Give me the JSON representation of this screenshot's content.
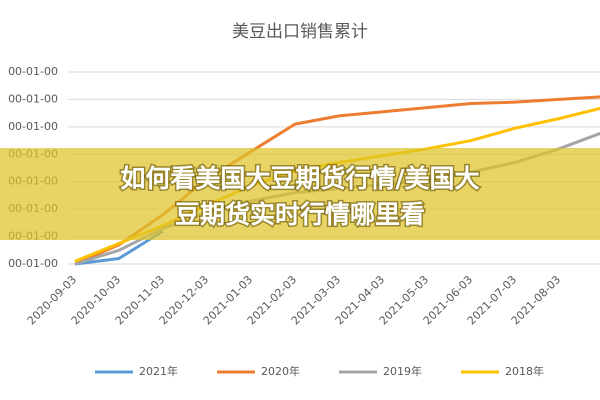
{
  "chart_data": {
    "type": "line",
    "title": "美豆出口销售累计",
    "categories": [
      "2020-09-03",
      "2020-10-03",
      "2020-11-03",
      "2020-12-03",
      "2021-01-03",
      "2021-02-03",
      "2021-03-03",
      "2021-04-03",
      "2021-05-03",
      "2021-06-03",
      "2021-07-03",
      "2021-08-03",
      null
    ],
    "series": [
      {
        "name": "2021年",
        "color": "#5b9bd5",
        "values": [
          0,
          0.2,
          1.2,
          null,
          null,
          null,
          null,
          null,
          null,
          null,
          null,
          null,
          null
        ]
      },
      {
        "name": "2020年",
        "color": "#ed7d31",
        "values": [
          0,
          0.7,
          1.8,
          3.1,
          4.1,
          5.1,
          5.4,
          5.55,
          5.7,
          5.85,
          5.9,
          6.0,
          6.1
        ]
      },
      {
        "name": "2019年",
        "color": "#a5a5a5",
        "values": [
          0,
          0.5,
          1.3,
          1.9,
          2.3,
          2.6,
          2.75,
          2.9,
          3.05,
          3.35,
          3.7,
          4.2,
          4.8
        ]
      },
      {
        "name": "2018年",
        "color": "#ffc000",
        "values": [
          0.1,
          0.75,
          1.4,
          2.15,
          2.85,
          3.4,
          3.7,
          3.95,
          4.2,
          4.5,
          4.95,
          5.3,
          5.7
        ]
      }
    ],
    "ylim": [
      0,
      7
    ],
    "yticks": [
      {
        "value": 0,
        "label": "00-01-00"
      },
      {
        "value": 1,
        "label": "00-01-00"
      },
      {
        "value": 2,
        "label": "00-01-00"
      },
      {
        "value": 3,
        "label": "00-01-00"
      },
      {
        "value": 4,
        "label": "00-01-00"
      },
      {
        "value": 5,
        "label": "00-01-00"
      },
      {
        "value": 6,
        "label": "00-01-00"
      },
      {
        "value": 7,
        "label": "00-01-00"
      }
    ],
    "grid": true
  },
  "overlay": {
    "lines": [
      "如何看美国大豆期货行情/美国大",
      "豆期货实时行情哪里看"
    ]
  }
}
